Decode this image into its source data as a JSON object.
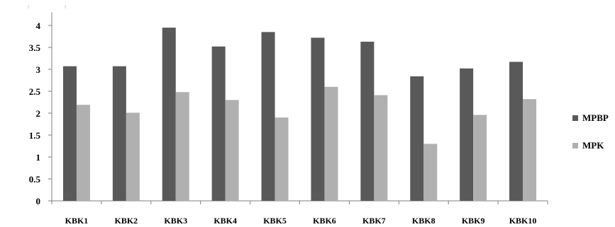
{
  "chart_data": {
    "type": "bar",
    "categories": [
      "KBK1",
      "KBK2",
      "KBK3",
      "KBK4",
      "KBK5",
      "KBK6",
      "KBK7",
      "KBK8",
      "KBK9",
      "KBK10"
    ],
    "series": [
      {
        "name": "MPBP",
        "color": "#595959",
        "values": [
          3.07,
          3.07,
          3.95,
          3.52,
          3.85,
          3.72,
          3.63,
          2.84,
          3.02,
          3.17
        ]
      },
      {
        "name": "MPK",
        "color": "#b0b0b0",
        "values": [
          2.19,
          2.01,
          2.48,
          2.3,
          1.9,
          2.6,
          2.41,
          1.3,
          1.96,
          2.32
        ]
      }
    ],
    "yticks": [
      "0",
      "0.5",
      "1",
      "1.5",
      "2",
      "2.5",
      "3",
      "3.5",
      "4"
    ],
    "ylim": [
      0,
      4.3
    ],
    "grid": false,
    "legend_position": "right",
    "title": "",
    "xlabel": "",
    "ylabel": ""
  }
}
